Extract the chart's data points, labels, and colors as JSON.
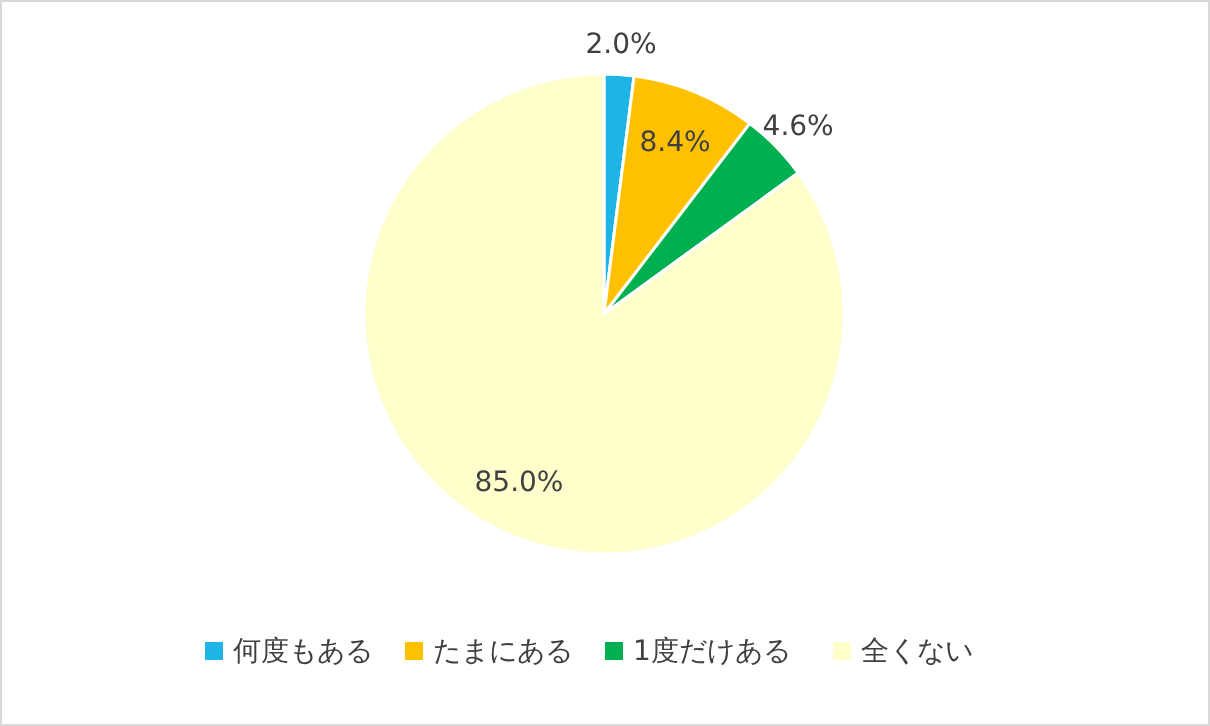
{
  "chart_data": {
    "type": "pie",
    "categories": [
      "何度もある",
      "たまにある",
      "1度だけある",
      "全くない"
    ],
    "values": [
      2.0,
      8.4,
      4.6,
      85.0
    ],
    "colors": [
      "#1fb4e6",
      "#ffc000",
      "#00b050",
      "#ffffcc"
    ],
    "value_labels": [
      "2.0%",
      "8.4%",
      "4.6%",
      "85.0%"
    ],
    "legend": "bottom"
  }
}
